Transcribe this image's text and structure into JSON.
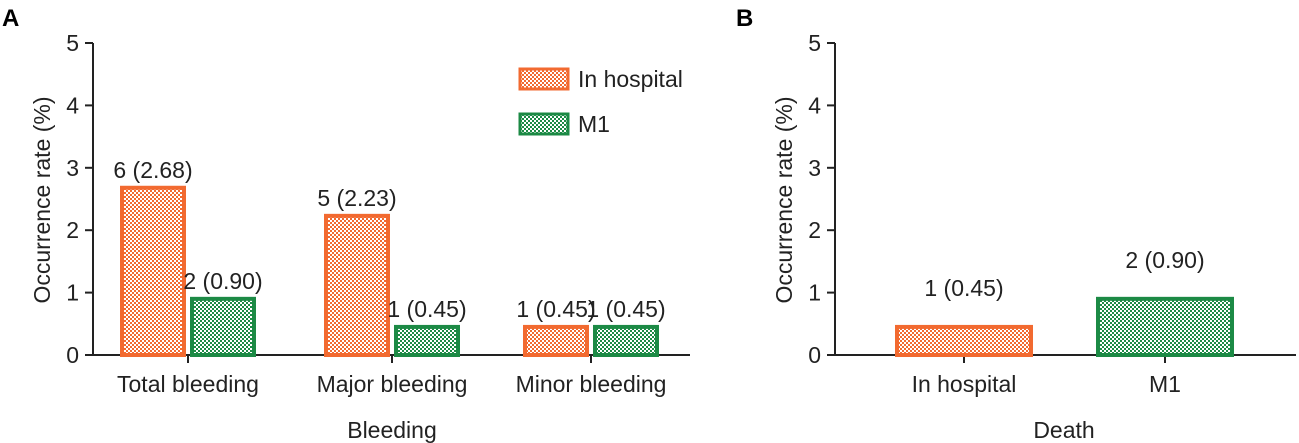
{
  "colors": {
    "in_hospital": "#f26a30",
    "m1": "#1c8a45",
    "axis": "#222222"
  },
  "chart_data": [
    {
      "panel": "A",
      "type": "bar",
      "ylabel": "Occurrence rate (%)",
      "xlabel": "Bleeding",
      "ylim": [
        0,
        5
      ],
      "yticks": [
        "0",
        "1",
        "2",
        "3",
        "4",
        "5"
      ],
      "categories": [
        "Total bleeding",
        "Major bleeding",
        "Minor bleeding"
      ],
      "legend": [
        "In hospital",
        "M1"
      ],
      "legend_position": "top-right",
      "series": [
        {
          "name": "In hospital",
          "values": [
            2.68,
            2.23,
            0.45
          ],
          "labels": [
            "6 (2.68)",
            "5 (2.23)",
            "1 (0.45)"
          ]
        },
        {
          "name": "M1",
          "values": [
            0.9,
            0.45,
            0.45
          ],
          "labels": [
            "2 (0.90)",
            "1 (0.45)",
            "1 (0.45)"
          ]
        }
      ]
    },
    {
      "panel": "B",
      "type": "bar",
      "ylabel": "Occurrence rate (%)",
      "xlabel": "Death",
      "ylim": [
        0,
        5
      ],
      "yticks": [
        "0",
        "1",
        "2",
        "3",
        "4",
        "5"
      ],
      "categories": [
        "In hospital",
        "M1"
      ],
      "series": [
        {
          "name": "Death",
          "values": [
            0.45,
            0.9
          ],
          "labels": [
            "1 (0.45)",
            "2 (0.90)"
          ]
        }
      ]
    }
  ]
}
